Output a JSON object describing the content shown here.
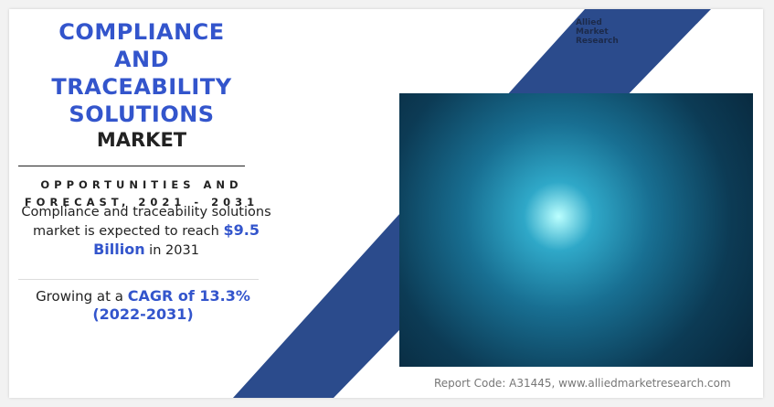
{
  "title_lines": [
    "COMPLIANCE",
    "AND",
    "TRACEABILITY",
    "SOLUTIONS"
  ],
  "market": "MARKET",
  "opportunities": "OPPORTUNITIES AND FORECAST, 2021 - 2031",
  "description": {
    "pre": "Compliance and traceability solutions market is expected to reach ",
    "value": "$9.5 Billion",
    "post": " in 2031"
  },
  "growth": {
    "pre": "Growing at a ",
    "value": "CAGR of 13.3% (2022-2031)"
  },
  "logo": {
    "lines": [
      "Allied",
      "Market",
      "Research"
    ]
  },
  "report_code": "Report Code: A31445, www.alliedmarketresearch.com",
  "colors": {
    "accent": "#3355cc",
    "band": "#2b4b8c"
  }
}
